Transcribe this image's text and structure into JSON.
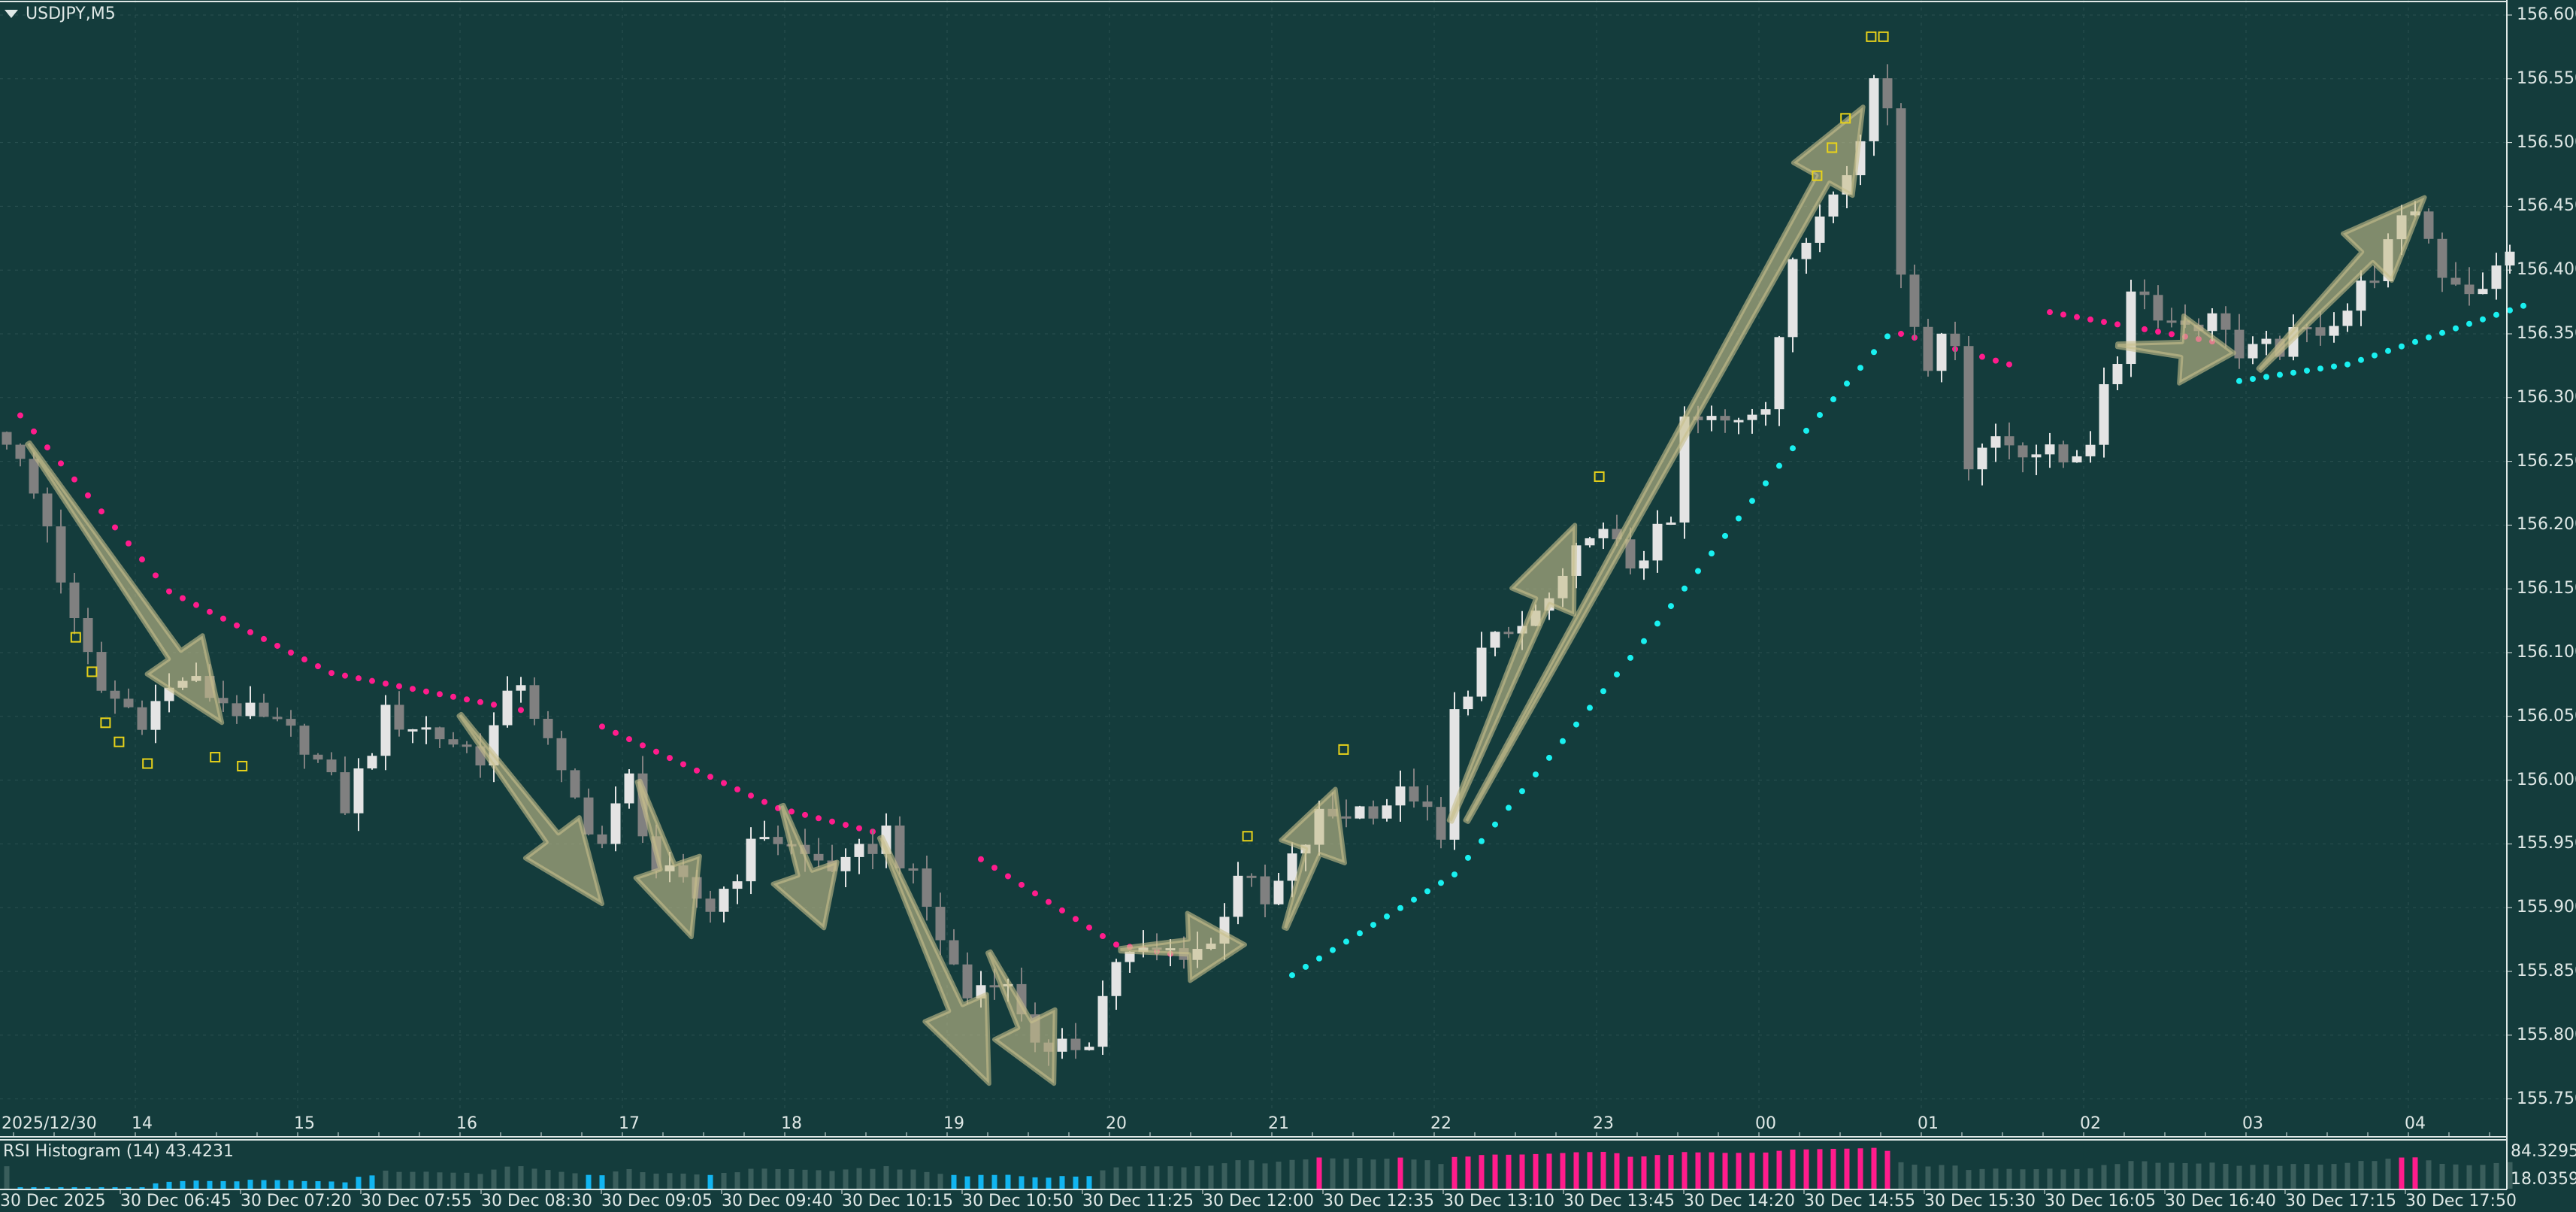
{
  "header": {
    "symbol_label": "USDJPY,M5"
  },
  "price_axis": {
    "labels": [
      "156.600",
      "156.550",
      "156.500",
      "156.450",
      "156.400",
      "156.350",
      "156.300",
      "156.250",
      "156.200",
      "156.150",
      "156.100",
      "156.050",
      "156.000",
      "155.950",
      "155.900",
      "155.850",
      "155.800",
      "155.750"
    ]
  },
  "time_axis_top": {
    "first_label": "2025/12/30",
    "hours": [
      "14",
      "15",
      "16",
      "17",
      "18",
      "19",
      "20",
      "21",
      "22",
      "23",
      "00",
      "01",
      "02",
      "03",
      "04"
    ]
  },
  "time_axis_bottom": {
    "first_label": "30 Dec 2025",
    "labels": [
      "30 Dec 06:45",
      "30 Dec 07:20",
      "30 Dec 07:55",
      "30 Dec 08:30",
      "30 Dec 09:05",
      "30 Dec 09:40",
      "30 Dec 10:15",
      "30 Dec 10:50",
      "30 Dec 11:25",
      "30 Dec 12:00",
      "30 Dec 12:35",
      "30 Dec 13:10",
      "30 Dec 13:45",
      "30 Dec 14:20",
      "30 Dec 14:55",
      "30 Dec 15:30",
      "30 Dec 16:05",
      "30 Dec 16:40",
      "30 Dec 17:15",
      "30 Dec 17:50"
    ]
  },
  "rsi_panel": {
    "title": "RSI Histogram (14) 43.4231",
    "max_label": "84.3295",
    "min_label": "18.0359",
    "upper_level": 70,
    "lower_level": 30
  },
  "colors": {
    "background": "#143c3c",
    "bull": "#e4e4e4",
    "bear": "#808080",
    "psar_down": "#ff1c8c",
    "psar_up": "#19f0f0",
    "arrow": "#c8bf8c",
    "marker": "#e8d21a",
    "rsi_high": "#ff1c8c",
    "rsi_low": "#12b5f0",
    "rsi_mid": "#3a5e5c"
  },
  "chart_data": {
    "type": "candlestick",
    "symbol": "USDJPY",
    "timeframe": "M5",
    "ylim": [
      155.75,
      156.6
    ],
    "bar_count": 186,
    "close_keypoints": [
      [
        0,
        156.27
      ],
      [
        3,
        156.2
      ],
      [
        5,
        156.12
      ],
      [
        7,
        156.07
      ],
      [
        10,
        156.05
      ],
      [
        13,
        156.08
      ],
      [
        18,
        156.05
      ],
      [
        22,
        156.03
      ],
      [
        25,
        155.98
      ],
      [
        28,
        156.05
      ],
      [
        31,
        156.04
      ],
      [
        35,
        156.02
      ],
      [
        38,
        156.08
      ],
      [
        41,
        156.0
      ],
      [
        44,
        155.95
      ],
      [
        46,
        156.0
      ],
      [
        48,
        155.93
      ],
      [
        52,
        155.9
      ],
      [
        56,
        155.96
      ],
      [
        59,
        155.94
      ],
      [
        62,
        155.93
      ],
      [
        65,
        155.96
      ],
      [
        68,
        155.9
      ],
      [
        71,
        155.83
      ],
      [
        73,
        155.85
      ],
      [
        75,
        155.82
      ],
      [
        77,
        155.78
      ],
      [
        80,
        155.8
      ],
      [
        82,
        155.86
      ],
      [
        89,
        155.87
      ],
      [
        91,
        155.93
      ],
      [
        93,
        155.9
      ],
      [
        97,
        155.97
      ],
      [
        101,
        155.98
      ],
      [
        104,
        155.99
      ],
      [
        106,
        155.95
      ],
      [
        107,
        156.05
      ],
      [
        109,
        156.1
      ],
      [
        112,
        156.12
      ],
      [
        115,
        156.15
      ],
      [
        117,
        156.2
      ],
      [
        120,
        156.17
      ],
      [
        123,
        156.2
      ],
      [
        124,
        156.28
      ],
      [
        127,
        156.28
      ],
      [
        130,
        156.3
      ],
      [
        132,
        156.4
      ],
      [
        135,
        156.47
      ],
      [
        137,
        156.5
      ],
      [
        138,
        156.55
      ],
      [
        139,
        156.53
      ],
      [
        140,
        156.4
      ],
      [
        142,
        156.33
      ],
      [
        144,
        156.35
      ],
      [
        145,
        156.25
      ],
      [
        147,
        156.27
      ],
      [
        152,
        156.25
      ],
      [
        154,
        156.27
      ],
      [
        156,
        156.33
      ],
      [
        157,
        156.39
      ],
      [
        160,
        156.36
      ],
      [
        164,
        156.36
      ],
      [
        165,
        156.33
      ],
      [
        168,
        156.34
      ],
      [
        170,
        156.35
      ],
      [
        173,
        156.37
      ],
      [
        175,
        156.4
      ],
      [
        178,
        156.45
      ],
      [
        180,
        156.4
      ],
      [
        183,
        156.38
      ],
      [
        185,
        156.42
      ]
    ],
    "psar_segments": [
      {
        "trend": "down",
        "points": [
          [
            1,
            156.286
          ],
          [
            12,
            156.148
          ],
          [
            24,
            156.084
          ],
          [
            38,
            156.055
          ]
        ]
      },
      {
        "trend": "down",
        "points": [
          [
            44,
            156.042
          ],
          [
            57,
            155.978
          ],
          [
            65,
            155.957
          ]
        ]
      },
      {
        "trend": "down",
        "points": [
          [
            72,
            155.938
          ],
          [
            82,
            155.871
          ],
          [
            87,
            155.862
          ]
        ]
      },
      {
        "trend": "up",
        "points": [
          [
            95,
            155.847
          ],
          [
            107,
            155.926
          ],
          [
            121,
            156.109
          ],
          [
            133,
            156.274
          ],
          [
            139,
            156.348
          ]
        ]
      },
      {
        "trend": "down",
        "points": [
          [
            140,
            156.35
          ],
          [
            148,
            156.326
          ]
        ]
      },
      {
        "trend": "down",
        "points": [
          [
            151,
            156.367
          ],
          [
            163,
            156.344
          ]
        ]
      },
      {
        "trend": "up",
        "points": [
          [
            165,
            156.313
          ],
          [
            173,
            156.326
          ],
          [
            186,
            156.372
          ]
        ]
      }
    ],
    "arrows": [
      [
        [
          1.6,
          156.264
        ],
        [
          15.9,
          156.045
        ]
      ],
      [
        [
          33.5,
          156.051
        ],
        [
          44,
          155.903
        ]
      ],
      [
        [
          46.7,
          155.999
        ],
        [
          50.6,
          155.877
        ]
      ],
      [
        [
          57.3,
          155.98
        ],
        [
          60.4,
          155.884
        ]
      ],
      [
        [
          64.6,
          155.955
        ],
        [
          72.6,
          155.762
        ]
      ],
      [
        [
          72.6,
          155.865
        ],
        [
          77.4,
          155.762
        ]
      ],
      [
        [
          82.3,
          155.867
        ],
        [
          91.5,
          155.871
        ]
      ],
      [
        [
          94.5,
          155.884
        ],
        [
          98.2,
          155.993
        ]
      ],
      [
        [
          106.7,
          155.968
        ],
        [
          115.9,
          156.2
        ]
      ],
      [
        [
          107.9,
          155.968
        ],
        [
          137.2,
          156.528
        ]
      ],
      [
        [
          156,
          156.341
        ],
        [
          164.6,
          156.335
        ]
      ],
      [
        [
          166.5,
          156.322
        ],
        [
          178.7,
          156.457
        ]
      ]
    ],
    "markers": [
      [
        5.1,
        156.112
      ],
      [
        6.3,
        156.085
      ],
      [
        7.3,
        156.045
      ],
      [
        8.3,
        156.03
      ],
      [
        10.4,
        156.013
      ],
      [
        15.4,
        156.018
      ],
      [
        17.4,
        156.011
      ],
      [
        91.7,
        155.956
      ],
      [
        98.8,
        156.024
      ],
      [
        117.7,
        156.238
      ],
      [
        133.8,
        156.474
      ],
      [
        134.9,
        156.496
      ],
      [
        135.9,
        156.519
      ],
      [
        137.8,
        156.583
      ],
      [
        138.7,
        156.583
      ]
    ]
  }
}
